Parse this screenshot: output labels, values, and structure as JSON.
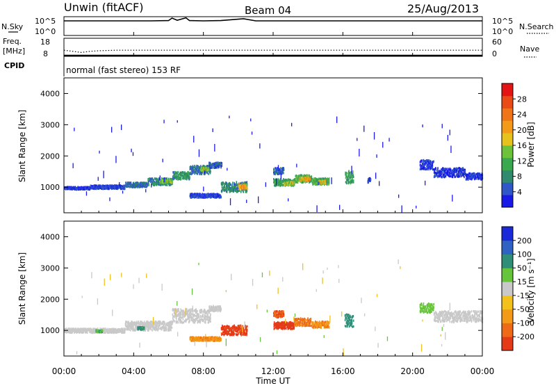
{
  "header": {
    "site": "Unwin (fitACF)",
    "beam": "Beam 04",
    "date": "25/Aug/2013"
  },
  "left_labels": {
    "nsky": "N.Sky",
    "freq": "Freq.",
    "freq_unit": "[MHz]",
    "cpid": "CPID"
  },
  "right_labels": {
    "nsearch": "N.Search",
    "nave": "Nave"
  },
  "cpid_text": "normal (fast stereo) 153 RF",
  "chart_data": [
    {
      "type": "line",
      "panel": "noise",
      "left_ticks": [
        "10^5",
        "10^0"
      ],
      "right_ticks": [
        "10^5",
        "10^0"
      ],
      "series": [
        {
          "name": "N.Sky",
          "x": [
            0,
            1,
            2,
            3,
            4,
            5,
            6,
            6.2,
            6.5,
            7,
            7.2,
            8,
            9,
            10.3,
            11,
            12,
            14,
            16,
            18,
            20,
            22,
            24
          ],
          "values": [
            4.7,
            4.7,
            4.7,
            4.7,
            4.7,
            4.7,
            4.8,
            5.6,
            4.9,
            5.7,
            4.8,
            4.7,
            4.8,
            5.4,
            4.7,
            4.7,
            4.7,
            4.7,
            4.7,
            4.7,
            4.7,
            4.7
          ]
        }
      ]
    },
    {
      "type": "line",
      "panel": "freq-nave",
      "left_ticks": [
        "18",
        "8"
      ],
      "right_ticks": [
        "60",
        "0"
      ],
      "series": [
        {
          "name": "Freq",
          "x": [
            0,
            24
          ],
          "values": [
            8.5,
            8.5
          ]
        },
        {
          "name": "Nave",
          "x": [
            0,
            1,
            1.5,
            2,
            3,
            24
          ],
          "values": [
            22,
            14,
            18,
            20,
            22,
            22
          ]
        }
      ]
    },
    {
      "type": "heatmap",
      "panel": "power",
      "ylabel": "Slant Range [km]",
      "yticks": [
        1000,
        2000,
        3000,
        4000
      ],
      "ylim": [
        180,
        4500
      ],
      "colorbar_label": "Power [dB]",
      "colorbar_ticks": [
        4,
        8,
        12,
        16,
        20,
        24,
        28
      ],
      "colorbar_colors": [
        "#1a1ae6",
        "#2f57c8",
        "#2f8a6e",
        "#3aa84f",
        "#6cc23a",
        "#e8c21c",
        "#f39a18",
        "#f07418",
        "#ea4a18",
        "#e41414"
      ],
      "regions": [
        {
          "t0": 0.0,
          "t1": 1.5,
          "r0": 960,
          "r1": 1040,
          "v": 3
        },
        {
          "t0": 1.5,
          "t1": 3.5,
          "r0": 980,
          "r1": 1090,
          "v": 4
        },
        {
          "t0": 3.5,
          "t1": 4.8,
          "r0": 1030,
          "r1": 1180,
          "v": 6
        },
        {
          "t0": 4.8,
          "t1": 6.2,
          "r0": 1100,
          "r1": 1320,
          "v": 8
        },
        {
          "t0": 5.5,
          "t1": 6.2,
          "r0": 1180,
          "r1": 1260,
          "v": 14
        },
        {
          "t0": 6.2,
          "t1": 7.2,
          "r0": 1280,
          "r1": 1520,
          "v": 9
        },
        {
          "t0": 7.2,
          "t1": 8.4,
          "r0": 1450,
          "r1": 1720,
          "v": 6
        },
        {
          "t0": 7.8,
          "t1": 8.3,
          "r0": 1560,
          "r1": 1660,
          "v": 14
        },
        {
          "t0": 8.3,
          "t1": 9.0,
          "r0": 1650,
          "r1": 1820,
          "v": 5
        },
        {
          "t0": 7.2,
          "t1": 9.0,
          "r0": 700,
          "r1": 820,
          "v": 4
        },
        {
          "t0": 9.0,
          "t1": 10.5,
          "r0": 880,
          "r1": 1200,
          "v": 8
        },
        {
          "t0": 10.0,
          "t1": 10.5,
          "r0": 980,
          "r1": 1120,
          "v": 20
        },
        {
          "t0": 12.0,
          "t1": 12.6,
          "r0": 1450,
          "r1": 1650,
          "v": 5
        },
        {
          "t0": 12.0,
          "t1": 13.2,
          "r0": 1080,
          "r1": 1300,
          "v": 10
        },
        {
          "t0": 12.6,
          "t1": 13.2,
          "r0": 1100,
          "r1": 1200,
          "v": 15
        },
        {
          "t0": 13.2,
          "t1": 14.2,
          "r0": 1180,
          "r1": 1420,
          "v": 12
        },
        {
          "t0": 13.5,
          "t1": 14.1,
          "r0": 1240,
          "r1": 1340,
          "v": 19
        },
        {
          "t0": 14.2,
          "t1": 15.2,
          "r0": 1120,
          "r1": 1320,
          "v": 11
        },
        {
          "t0": 14.6,
          "t1": 15.0,
          "r0": 1150,
          "r1": 1250,
          "v": 17
        },
        {
          "t0": 16.1,
          "t1": 16.6,
          "r0": 1150,
          "r1": 1550,
          "v": 10
        },
        {
          "t0": 17.4,
          "t1": 17.6,
          "r0": 1180,
          "r1": 1320,
          "v": 4
        },
        {
          "t0": 20.4,
          "t1": 21.2,
          "r0": 1600,
          "r1": 1900,
          "v": 3
        },
        {
          "t0": 21.2,
          "t1": 23.0,
          "r0": 1350,
          "r1": 1650,
          "v": 3
        },
        {
          "t0": 23.0,
          "t1": 24.0,
          "r0": 1280,
          "r1": 1480,
          "v": 3
        }
      ]
    },
    {
      "type": "heatmap",
      "panel": "velocity",
      "ylabel": "Slant Range [km]",
      "yticks": [
        1000,
        2000,
        3000,
        4000
      ],
      "ylim": [
        180,
        4500
      ],
      "colorbar_label": "Velocity [m s⁻¹]",
      "colorbar_ticks": [
        "200",
        "100",
        "50",
        "15",
        "-15",
        "-50",
        "-100",
        "-200"
      ],
      "colorbar_colors": [
        "#1a2ad8",
        "#2f62c2",
        "#2f8e78",
        "#66c43a",
        "#c9c9c9",
        "#f2c11c",
        "#f39a18",
        "#ee6a18",
        "#e43a18"
      ],
      "regions": [
        {
          "t0": 0.0,
          "t1": 3.5,
          "r0": 960,
          "r1": 1090,
          "v": 0
        },
        {
          "t0": 1.8,
          "t1": 2.2,
          "r0": 980,
          "r1": 1040,
          "v": 30
        },
        {
          "t0": 3.5,
          "t1": 6.2,
          "r0": 1030,
          "r1": 1320,
          "v": 2
        },
        {
          "t0": 4.2,
          "t1": 4.6,
          "r0": 1060,
          "r1": 1140,
          "v": 40
        },
        {
          "t0": 6.2,
          "t1": 8.4,
          "r0": 1280,
          "r1": 1720,
          "v": -3
        },
        {
          "t0": 8.3,
          "t1": 9.0,
          "r0": 1650,
          "r1": 1820,
          "v": 0
        },
        {
          "t0": 7.2,
          "t1": 9.0,
          "r0": 700,
          "r1": 820,
          "v": -90
        },
        {
          "t0": 9.0,
          "t1": 10.5,
          "r0": 880,
          "r1": 1200,
          "v": -180
        },
        {
          "t0": 12.0,
          "t1": 12.6,
          "r0": 1450,
          "r1": 1650,
          "v": -140
        },
        {
          "t0": 12.0,
          "t1": 13.2,
          "r0": 1080,
          "r1": 1300,
          "v": -190
        },
        {
          "t0": 13.2,
          "t1": 14.2,
          "r0": 1180,
          "r1": 1420,
          "v": -110
        },
        {
          "t0": 14.2,
          "t1": 15.2,
          "r0": 1120,
          "r1": 1320,
          "v": -90
        },
        {
          "t0": 16.1,
          "t1": 16.6,
          "r0": 1150,
          "r1": 1550,
          "v": 60
        },
        {
          "t0": 20.4,
          "t1": 21.2,
          "r0": 1600,
          "r1": 1900,
          "v": 20
        },
        {
          "t0": 21.2,
          "t1": 24.0,
          "r0": 1300,
          "r1": 1650,
          "v": -5
        }
      ]
    }
  ],
  "xaxis": {
    "label": "Time UT",
    "ticks": [
      "00:00",
      "04:00",
      "08:00",
      "12:00",
      "16:00",
      "20:00",
      "00:00"
    ]
  }
}
